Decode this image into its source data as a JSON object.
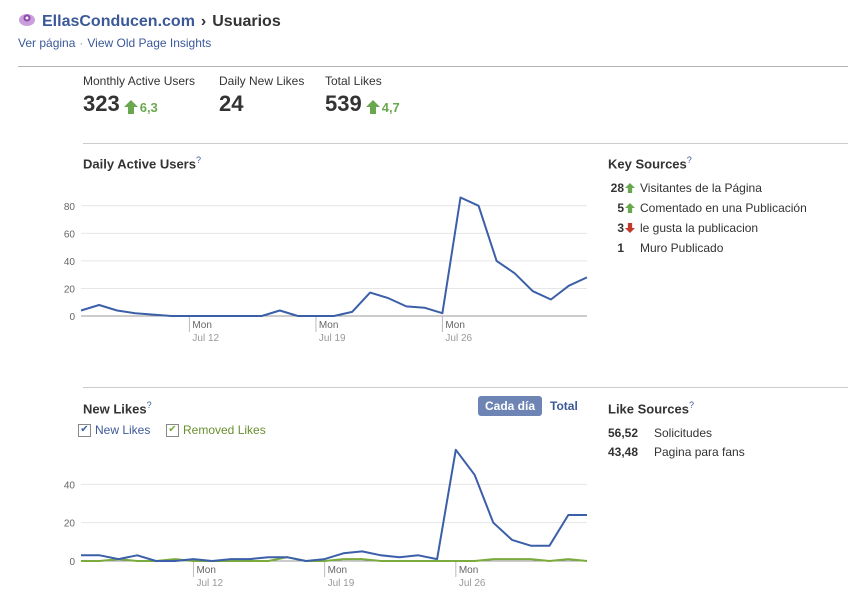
{
  "header": {
    "site": "EllasConducen.com",
    "separator": "›",
    "page": "Usuarios",
    "links": [
      "Ver página",
      "View Old Page Insights"
    ]
  },
  "metrics": [
    {
      "label": "Monthly Active Users",
      "value": "323",
      "delta": "6,3",
      "trend": "up"
    },
    {
      "label": "Daily New Likes",
      "value": "24",
      "delta": "",
      "trend": ""
    },
    {
      "label": "Total Likes",
      "value": "539",
      "delta": "4,7",
      "trend": "up"
    }
  ],
  "daily_active": {
    "title": "Daily Active Users",
    "help": "?"
  },
  "key_sources": {
    "title": "Key Sources",
    "help": "?",
    "items": [
      {
        "count": "28",
        "trend": "up",
        "label": "Visitantes de la Página"
      },
      {
        "count": "5",
        "trend": "up",
        "label": "Comentado en una Publicación"
      },
      {
        "count": "3",
        "trend": "down",
        "label": "le gusta la publicacion"
      },
      {
        "count": "1",
        "trend": "",
        "label": "Muro Publicado"
      }
    ]
  },
  "new_likes": {
    "title": "New Likes",
    "help": "?",
    "toggle_active": "Cada día",
    "toggle_other": "Total",
    "legend_new": "New Likes",
    "legend_removed": "Removed Likes"
  },
  "like_sources": {
    "title": "Like Sources",
    "help": "?",
    "items": [
      {
        "value": "56,52",
        "label": "Solicitudes"
      },
      {
        "value": "43,48",
        "label": "Pagina para fans"
      }
    ]
  },
  "colors": {
    "link": "#3b5998",
    "series_new": "#3b5fa8",
    "series_removed": "#7aab3c",
    "up": "#6aa84f",
    "down": "#c0392b"
  },
  "chart_data": [
    {
      "type": "line",
      "title": "Daily Active Users",
      "x_ticks": [
        {
          "day": "Mon",
          "date": "Jul 12"
        },
        {
          "day": "Mon",
          "date": "Jul 19"
        },
        {
          "day": "Mon",
          "date": "Jul 26"
        }
      ],
      "ylim": [
        0,
        90
      ],
      "yticks": [
        0,
        20,
        40,
        60,
        80
      ],
      "grid": true,
      "series": [
        {
          "values": [
            4,
            8,
            4,
            2,
            1,
            0,
            0,
            0,
            0,
            0,
            0,
            4,
            0,
            0,
            0,
            3,
            17,
            13,
            7,
            6,
            2,
            86,
            80,
            40,
            31,
            18,
            12,
            22,
            28
          ],
          "color": "#3b5fa8"
        }
      ]
    },
    {
      "type": "line",
      "title": "New Likes",
      "x_ticks": [
        {
          "day": "Mon",
          "date": "Jul 12"
        },
        {
          "day": "Mon",
          "date": "Jul 19"
        },
        {
          "day": "Mon",
          "date": "Jul 26"
        }
      ],
      "ylim": [
        0,
        60
      ],
      "yticks": [
        0,
        20,
        40
      ],
      "grid": true,
      "series": [
        {
          "name": "New Likes",
          "values": [
            3,
            3,
            1,
            3,
            0,
            0,
            1,
            0,
            1,
            1,
            2,
            2,
            0,
            1,
            4,
            5,
            3,
            2,
            3,
            1,
            58,
            45,
            20,
            11,
            8,
            8,
            24,
            24
          ],
          "color": "#3b5fa8"
        },
        {
          "name": "Removed Likes",
          "values": [
            0,
            0,
            1,
            0,
            0,
            1,
            0,
            0,
            0,
            0,
            0,
            2,
            0,
            0,
            1,
            1,
            0,
            0,
            0,
            0,
            0,
            0,
            1,
            1,
            1,
            0,
            1,
            0
          ],
          "color": "#7aab3c"
        }
      ]
    }
  ]
}
